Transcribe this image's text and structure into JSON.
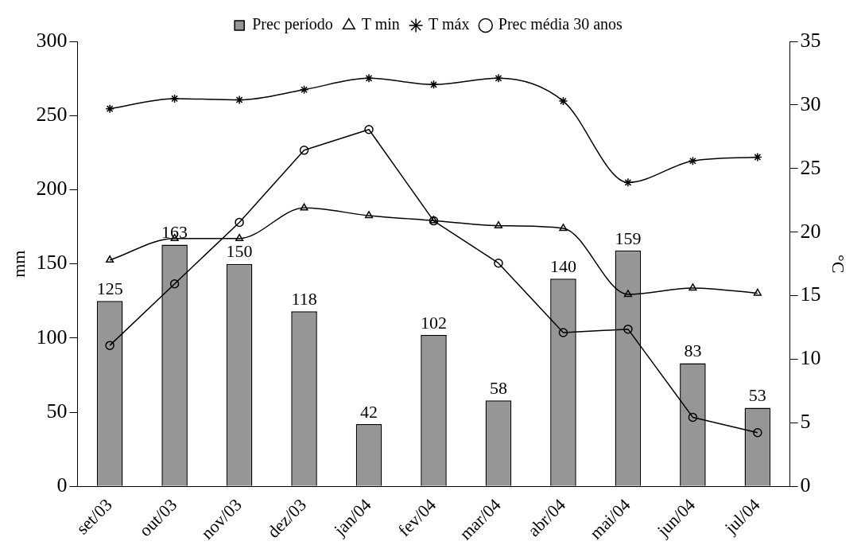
{
  "chart_data": {
    "type": "bar",
    "categories": [
      "set/03",
      "out/03",
      "nov/03",
      "dez/03",
      "jan/04",
      "fev/04",
      "mar/04",
      "abr/04",
      "mai/04",
      "jun/04",
      "jul/04"
    ],
    "ylabel": "mm",
    "y2label": "°C",
    "ylim": [
      0,
      300
    ],
    "yticks": [
      0,
      50,
      100,
      150,
      200,
      250,
      300
    ],
    "y2lim": [
      0,
      35
    ],
    "y2ticks": [
      0,
      5,
      10,
      15,
      20,
      25,
      30,
      35
    ],
    "legend": "top",
    "grid": false,
    "series": [
      {
        "name": "Prec período",
        "color": "#969696",
        "values": [
          125,
          163,
          150,
          118,
          42,
          102,
          58,
          140,
          159,
          83,
          53
        ],
        "data_labels": true
      },
      {
        "name": "T min",
        "type": "line",
        "axis": "y2",
        "color": "#000000",
        "marker": "triangle",
        "values": [
          17.8,
          19.5,
          19.5,
          21.9,
          21.3,
          20.9,
          20.5,
          20.3,
          15.1,
          15.6,
          15.2
        ]
      },
      {
        "name": "T máx",
        "type": "line",
        "axis": "y2",
        "color": "#000000",
        "marker": "cross",
        "values": [
          29.7,
          30.5,
          30.4,
          31.2,
          32.1,
          31.6,
          32.1,
          30.3,
          23.9,
          25.6,
          25.9
        ]
      },
      {
        "name": "Prec média 30 anos",
        "type": "line",
        "color": "#000000",
        "marker": "circle",
        "values": [
          95,
          136.5,
          178,
          226.6,
          240.6,
          179,
          150.5,
          103.7,
          106,
          46.6,
          36.2
        ]
      }
    ]
  }
}
